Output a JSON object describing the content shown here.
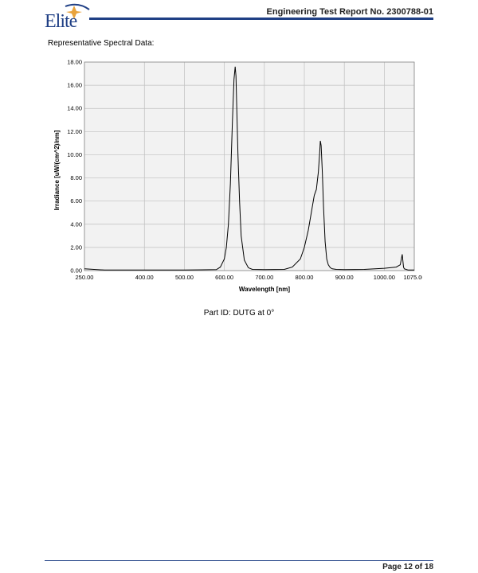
{
  "header": {
    "logo_text": "Elite",
    "report_title": "Engineering Test Report No. 2300788-01"
  },
  "section_label": "Representative Spectral Data:",
  "chart_data": {
    "type": "line",
    "xlabel": "Wavelength [nm]",
    "ylabel": "Irradiance [uW/(cm^2)/nm]",
    "xlim": [
      250,
      1075
    ],
    "ylim": [
      0,
      18
    ],
    "x_ticks": [
      "250.00",
      "400.00",
      "500.00",
      "600.00",
      "700.00",
      "800.00",
      "900.00",
      "1000.00",
      "1075.00"
    ],
    "y_ticks": [
      "0.00",
      "2.00",
      "4.00",
      "6.00",
      "8.00",
      "10.00",
      "12.00",
      "14.00",
      "16.00",
      "18.00"
    ],
    "grid": true,
    "series": [
      {
        "x": [
          250,
          300,
          400,
          500,
          580,
          590,
          600,
          605,
          610,
          615,
          620,
          624,
          627,
          629,
          631,
          634,
          638,
          642,
          650,
          660,
          670,
          700,
          750,
          770,
          790,
          800,
          810,
          815,
          820,
          825,
          830,
          835,
          838,
          840,
          842,
          845,
          848,
          852,
          856,
          860,
          865,
          870,
          880,
          900,
          950,
          1000,
          1030,
          1040,
          1045,
          1048,
          1050,
          1060,
          1075
        ],
        "y": [
          0.15,
          0.05,
          0.05,
          0.05,
          0.08,
          0.3,
          1.0,
          2.0,
          4.0,
          7.5,
          12.8,
          16.5,
          17.6,
          16.8,
          14.0,
          10.0,
          6.0,
          3.0,
          0.9,
          0.25,
          0.1,
          0.08,
          0.1,
          0.3,
          1.0,
          2.0,
          3.5,
          4.5,
          5.5,
          6.5,
          7.0,
          8.5,
          10.0,
          11.2,
          10.8,
          8.5,
          5.5,
          2.5,
          1.0,
          0.5,
          0.25,
          0.15,
          0.1,
          0.08,
          0.1,
          0.2,
          0.3,
          0.5,
          1.4,
          0.3,
          0.15,
          0.05,
          0.05
        ]
      }
    ]
  },
  "caption": "Part ID: DUTG at 0°",
  "footer": {
    "page": "Page 12 of 18"
  },
  "colors": {
    "brand_blue": "#1f3f85",
    "star_gold": "#e8a33d",
    "grid": "#bfbfbf",
    "plot_bg": "#f2f2f2"
  }
}
